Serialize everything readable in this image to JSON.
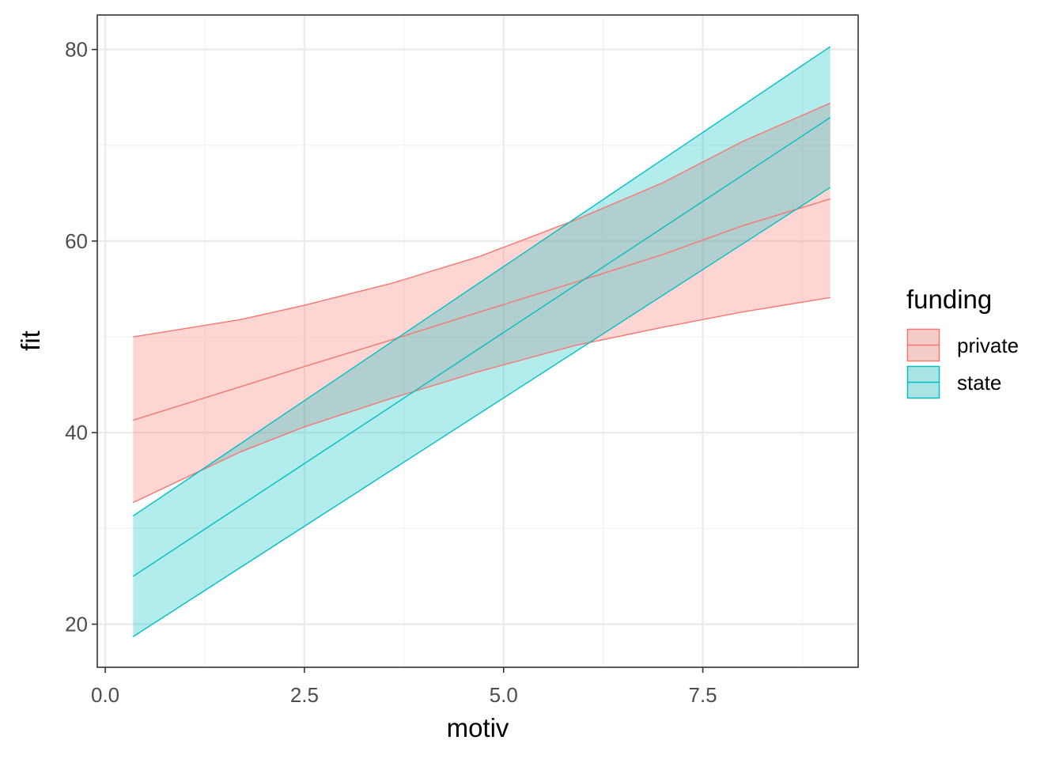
{
  "chart_data": {
    "type": "area",
    "xlabel": "motiv",
    "ylabel": "fit",
    "xlim": [
      -0.1,
      9.45
    ],
    "ylim": [
      15.5,
      83.6
    ],
    "x_ticks": [
      0.0,
      2.5,
      5.0,
      7.5
    ],
    "x_tick_labels": [
      "0.0",
      "2.5",
      "5.0",
      "7.5"
    ],
    "x_minor_ticks": [
      1.25,
      3.75,
      6.25,
      8.75
    ],
    "y_ticks": [
      20,
      40,
      60,
      80
    ],
    "y_tick_labels": [
      "20",
      "40",
      "60",
      "80"
    ],
    "y_minor_ticks": [
      30,
      50,
      70
    ],
    "grid": true,
    "legend": {
      "title": "funding",
      "position": "right"
    },
    "series": [
      {
        "name": "private",
        "color": "#F8766D",
        "x": [
          0.35,
          1.7,
          2.5,
          3.6,
          4.7,
          5.9,
          7.0,
          8.0,
          9.1
        ],
        "fit": [
          41.3,
          44.8,
          46.9,
          49.7,
          52.6,
          55.7,
          58.6,
          61.6,
          64.4
        ],
        "lower": [
          32.7,
          38.0,
          40.6,
          43.6,
          46.4,
          49.1,
          51.0,
          52.6,
          54.1
        ],
        "upper": [
          50.0,
          51.8,
          53.3,
          55.6,
          58.4,
          62.2,
          66.1,
          70.4,
          74.4
        ]
      },
      {
        "name": "state",
        "color": "#00BFC4",
        "x": [
          0.35,
          9.1
        ],
        "fit": [
          25.0,
          72.9
        ],
        "lower": [
          18.7,
          65.6
        ],
        "upper": [
          31.3,
          80.3
        ]
      }
    ]
  }
}
